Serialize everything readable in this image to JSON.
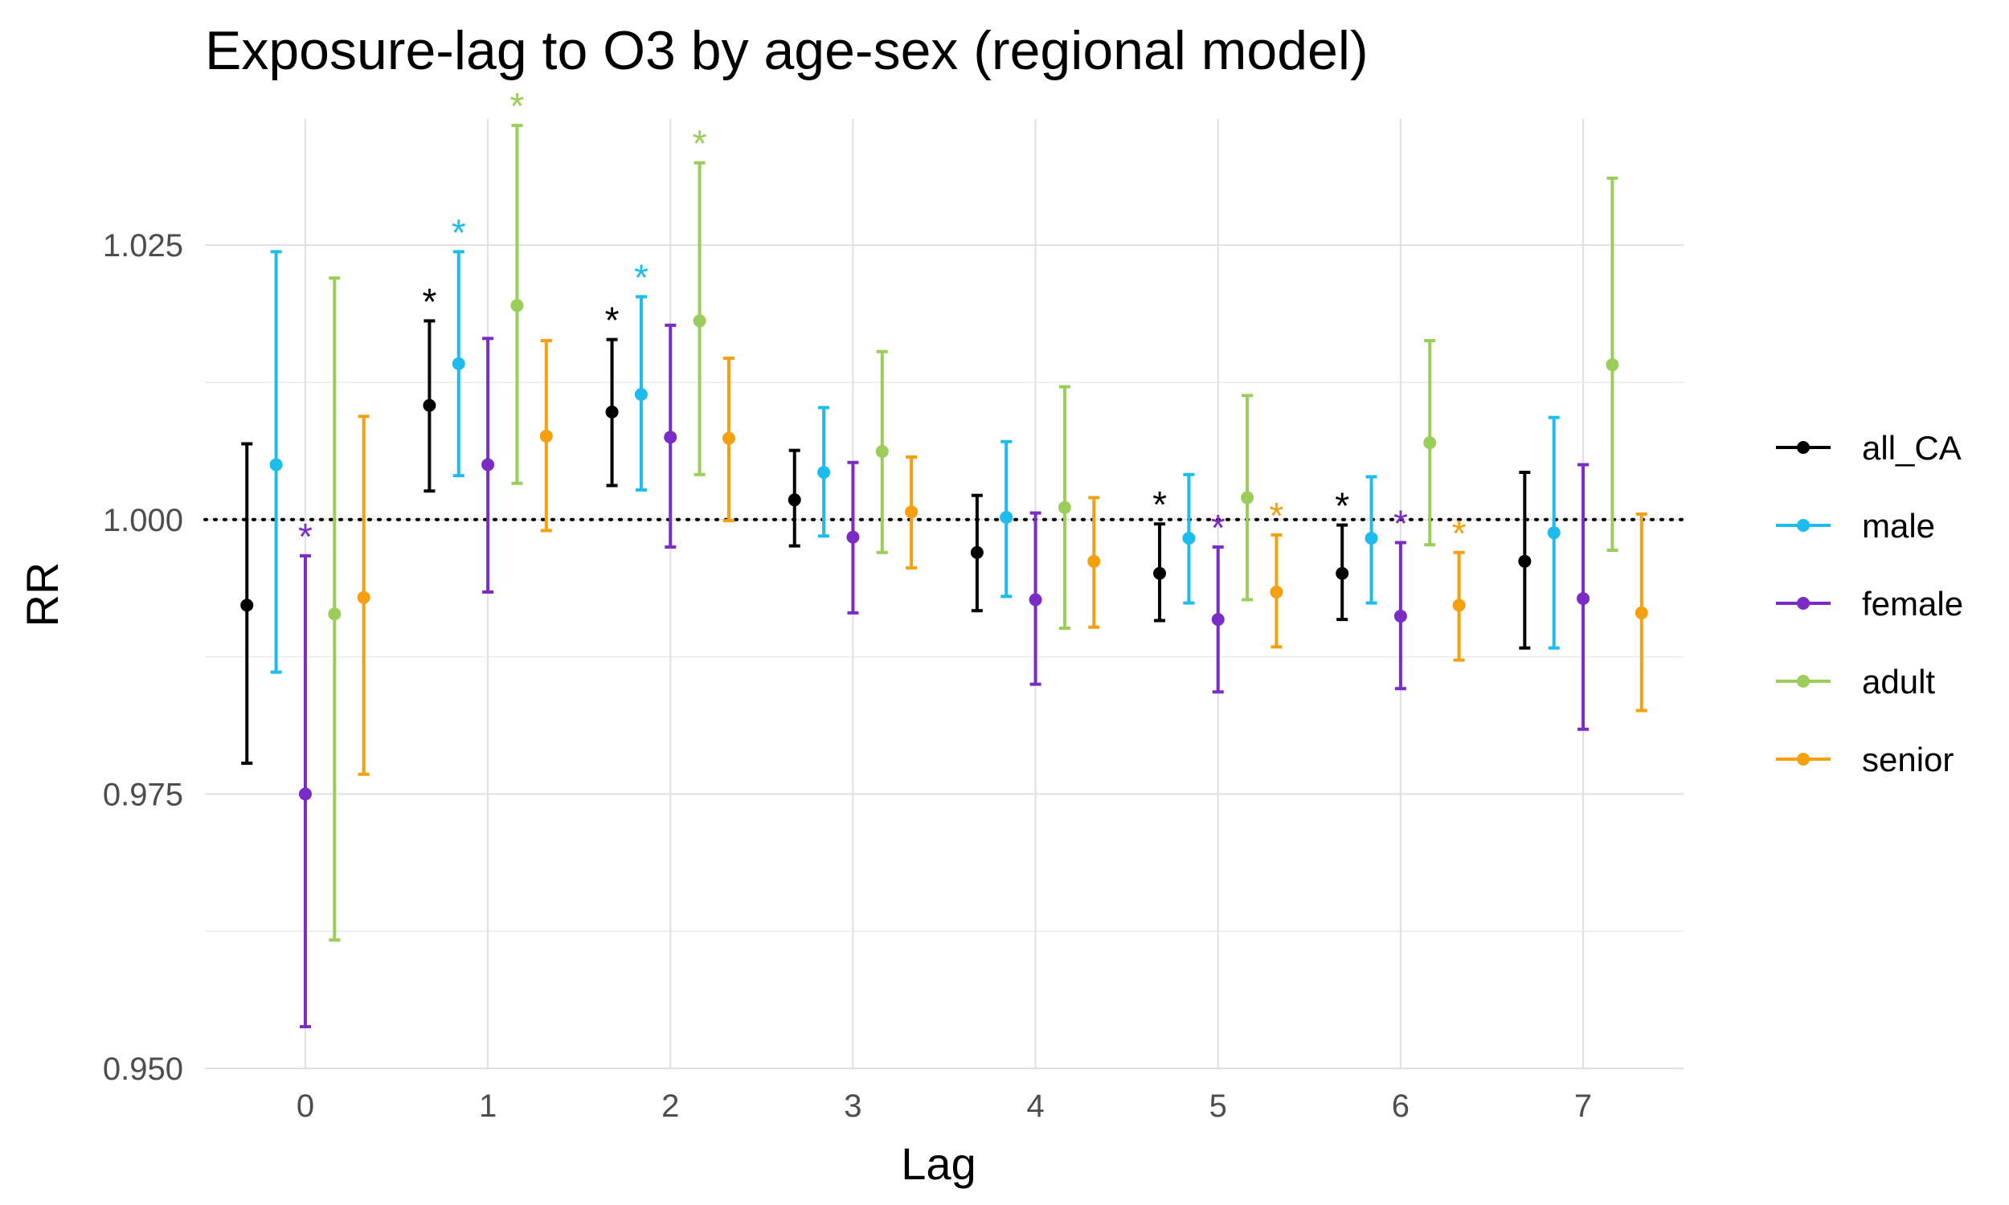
{
  "chart_data": {
    "type": "scatter",
    "title": "Exposure-lag to O3 by age-sex (regional model)",
    "xlabel": "Lag",
    "ylabel": "RR",
    "categories": [
      "0",
      "1",
      "2",
      "3",
      "4",
      "5",
      "6",
      "7"
    ],
    "xlim": [
      -0.55,
      7.55
    ],
    "ylim": [
      0.95,
      1.0365
    ],
    "y_ticks": [
      0.95,
      0.975,
      1.0,
      1.025
    ],
    "y_tick_labels": [
      "0.950",
      "0.975",
      "1.000",
      "1.025"
    ],
    "reference_line": 1.0,
    "grid": true,
    "legend_position": "right",
    "significance_marker": "*",
    "series": [
      {
        "name": "all_CA",
        "color": "#000000",
        "rr": [
          0.9922,
          1.0104,
          1.0098,
          1.0018,
          0.997,
          0.9951,
          0.9951,
          0.9962
        ],
        "lower": [
          0.9778,
          1.0026,
          1.0031,
          0.9976,
          0.9917,
          0.9908,
          0.9909,
          0.9883
        ],
        "upper": [
          1.0069,
          1.0181,
          1.0164,
          1.0063,
          1.0022,
          0.9996,
          0.9995,
          1.0043
        ],
        "significant": [
          false,
          true,
          true,
          false,
          false,
          true,
          true,
          false
        ]
      },
      {
        "name": "male",
        "color": "#1cbcec",
        "rr": [
          1.005,
          1.0142,
          1.0114,
          1.0043,
          1.0002,
          0.9983,
          0.9983,
          0.9988
        ],
        "lower": [
          0.9861,
          1.004,
          1.0027,
          0.9985,
          0.993,
          0.9924,
          0.9924,
          0.9883
        ],
        "upper": [
          1.0244,
          1.0244,
          1.0203,
          1.0102,
          1.0071,
          1.0041,
          1.0039,
          1.0093
        ],
        "significant": [
          false,
          true,
          true,
          false,
          false,
          false,
          false,
          false
        ]
      },
      {
        "name": "female",
        "color": "#7b2bc6",
        "rr": [
          0.975,
          1.005,
          1.0075,
          0.9984,
          0.9927,
          0.9909,
          0.9912,
          0.9928
        ],
        "lower": [
          0.9538,
          0.9934,
          0.9975,
          0.9915,
          0.985,
          0.9843,
          0.9846,
          0.9809
        ],
        "upper": [
          0.9967,
          1.0165,
          1.0177,
          1.0052,
          1.0006,
          0.9975,
          0.9979,
          1.005
        ],
        "significant": [
          true,
          false,
          false,
          false,
          false,
          true,
          true,
          false
        ]
      },
      {
        "name": "adult",
        "color": "#9acd5a",
        "rr": [
          0.9914,
          1.0195,
          1.0181,
          1.0062,
          1.0011,
          1.002,
          1.007,
          1.0141
        ],
        "lower": [
          0.9617,
          1.0033,
          1.0041,
          0.997,
          0.9901,
          0.9927,
          0.9977,
          0.9972
        ],
        "upper": [
          1.022,
          1.0359,
          1.0325,
          1.0153,
          1.0121,
          1.0113,
          1.0163,
          1.0311
        ],
        "significant": [
          false,
          true,
          true,
          false,
          false,
          false,
          false,
          false
        ]
      },
      {
        "name": "senior",
        "color": "#f5a00f",
        "rr": [
          0.9929,
          1.0076,
          1.0074,
          1.0007,
          0.9962,
          0.9934,
          0.9922,
          0.9915
        ],
        "lower": [
          0.9768,
          0.999,
          0.9999,
          0.9956,
          0.9902,
          0.9884,
          0.9872,
          0.9826
        ],
        "upper": [
          1.0094,
          1.0163,
          1.0147,
          1.0057,
          1.002,
          0.9986,
          0.997,
          1.0005
        ],
        "significant": [
          false,
          false,
          false,
          false,
          false,
          true,
          true,
          false
        ]
      }
    ]
  }
}
